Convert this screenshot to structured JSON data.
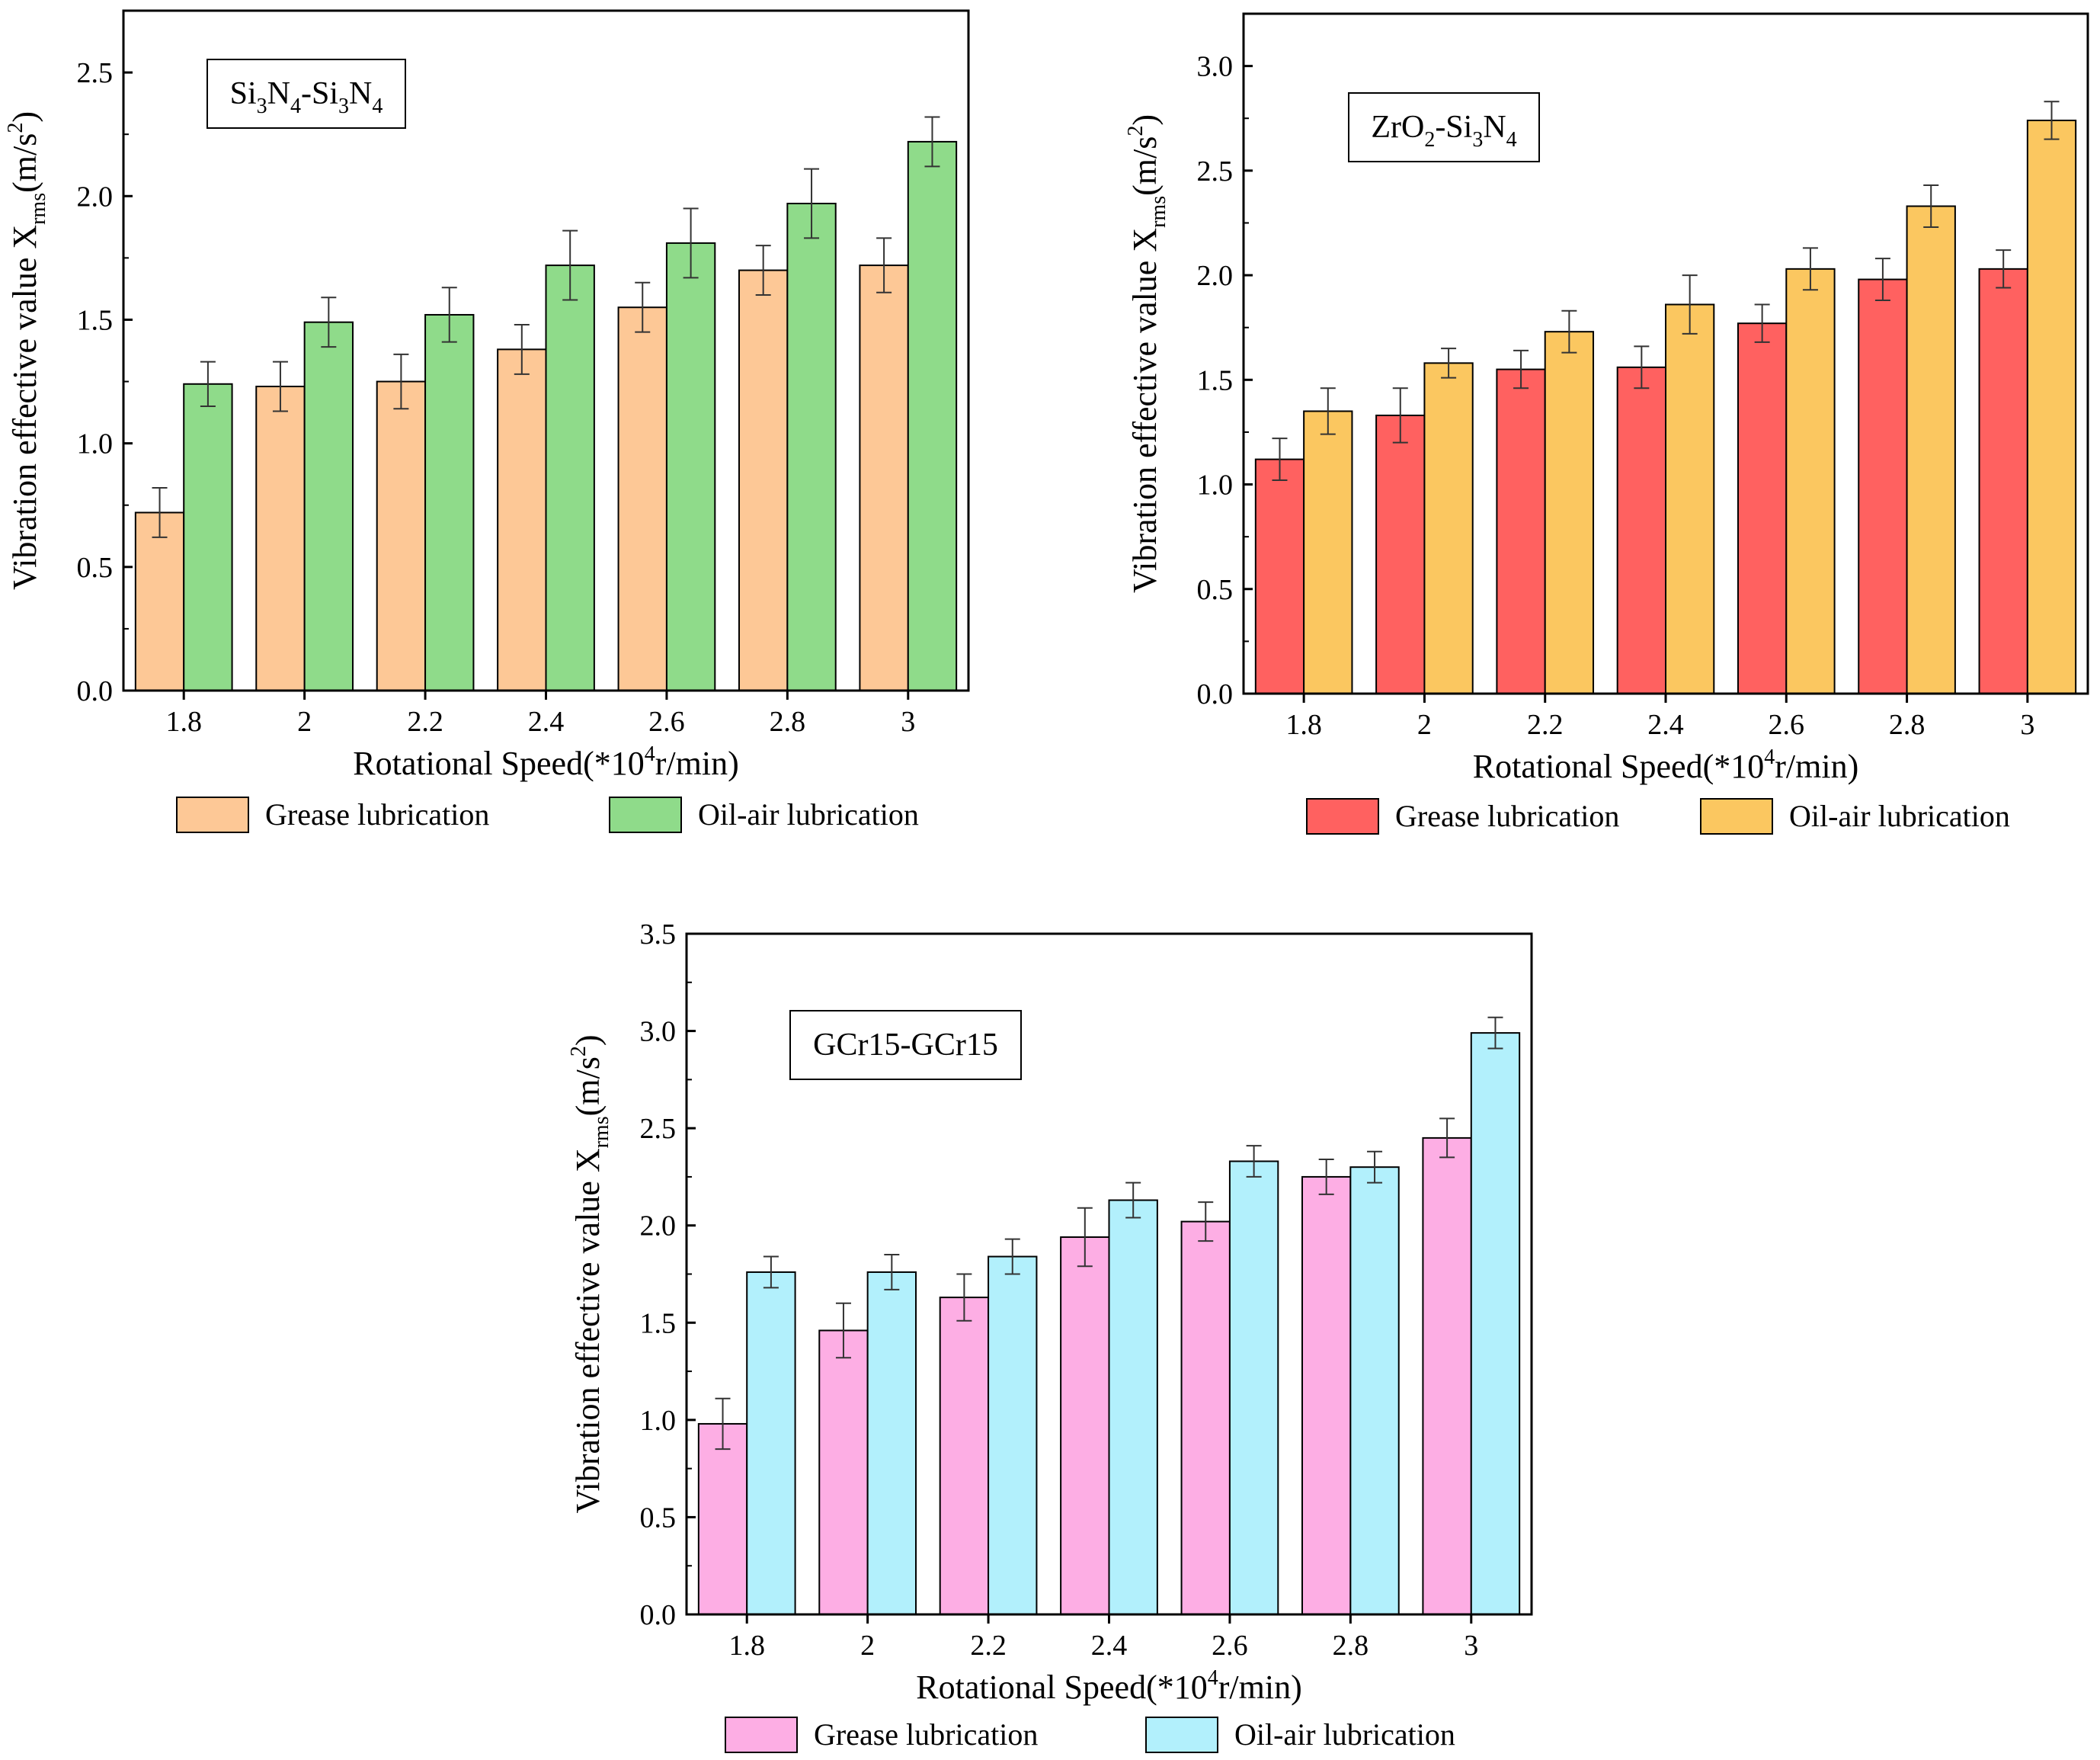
{
  "chart_data": [
    {
      "type": "bar",
      "annotation": {
        "base": [
          "Si",
          "N",
          "-Si",
          "N"
        ],
        "subs": [
          "3",
          "4",
          "3",
          "4"
        ]
      },
      "categories": [
        "1.8",
        "2",
        "2.2",
        "2.4",
        "2.6",
        "2.8",
        "3"
      ],
      "series": [
        {
          "name": "Grease lubrication",
          "color": "#FDC896",
          "values": [
            0.72,
            1.23,
            1.25,
            1.38,
            1.55,
            1.7,
            1.72
          ],
          "errors": [
            0.1,
            0.1,
            0.11,
            0.1,
            0.1,
            0.1,
            0.11
          ]
        },
        {
          "name": "Oil-air lubrication",
          "color": "#8FDB8A",
          "values": [
            1.24,
            1.49,
            1.52,
            1.72,
            1.81,
            1.97,
            2.22
          ],
          "errors": [
            0.09,
            0.1,
            0.11,
            0.14,
            0.14,
            0.14,
            0.1
          ]
        }
      ],
      "ylim": [
        0,
        2.75
      ],
      "yticks": [
        "0.0",
        "0.5",
        "1.0",
        "1.5",
        "2.0",
        "2.5"
      ],
      "xlabel": "Rotational Speed(*10",
      "xlabel_sup": "4",
      "xlabel_tail": "r/min)",
      "ylabel": "Vibration effective value X",
      "ylabel_sub": "rms",
      "ylabel_unit": "(m/s",
      "ylabel_sup": "2",
      "ylabel_tail": ")",
      "legend_position": "bottom"
    },
    {
      "type": "bar",
      "annotation": {
        "base": [
          "ZrO",
          "-Si",
          "N"
        ],
        "subs": [
          "2",
          "3",
          "4"
        ]
      },
      "categories": [
        "1.8",
        "2",
        "2.2",
        "2.4",
        "2.6",
        "2.8",
        "3"
      ],
      "series": [
        {
          "name": "Grease lubrication",
          "color": "#FF6160",
          "values": [
            1.12,
            1.33,
            1.55,
            1.56,
            1.77,
            1.98,
            2.03
          ],
          "errors": [
            0.1,
            0.13,
            0.09,
            0.1,
            0.09,
            0.1,
            0.09
          ]
        },
        {
          "name": "Oil-air lubrication",
          "color": "#FBC760",
          "values": [
            1.35,
            1.58,
            1.73,
            1.86,
            2.03,
            2.33,
            2.74
          ],
          "errors": [
            0.11,
            0.07,
            0.1,
            0.14,
            0.1,
            0.1,
            0.09
          ]
        }
      ],
      "ylim": [
        0,
        3.25
      ],
      "yticks": [
        "0.0",
        "0.5",
        "1.0",
        "1.5",
        "2.0",
        "2.5",
        "3.0"
      ],
      "xlabel": "Rotational Speed(*10",
      "xlabel_sup": "4",
      "xlabel_tail": "r/min)",
      "ylabel": "Vibration effective value X",
      "ylabel_sub": "rms",
      "ylabel_unit": "(m/s",
      "ylabel_sup": "2",
      "ylabel_tail": ")",
      "legend_position": "bottom"
    },
    {
      "type": "bar",
      "annotation": {
        "base": [
          "GCr15-GCr15"
        ],
        "subs": [
          ""
        ]
      },
      "categories": [
        "1.8",
        "2",
        "2.2",
        "2.4",
        "2.6",
        "2.8",
        "3"
      ],
      "series": [
        {
          "name": "Grease lubrication",
          "color": "#FDAEE4",
          "values": [
            0.98,
            1.46,
            1.63,
            1.94,
            2.02,
            2.25,
            2.45
          ],
          "errors": [
            0.13,
            0.14,
            0.12,
            0.15,
            0.1,
            0.09,
            0.1
          ]
        },
        {
          "name": "Oil-air lubrication",
          "color": "#B2F0FC",
          "values": [
            1.76,
            1.76,
            1.84,
            2.13,
            2.33,
            2.3,
            2.99
          ],
          "errors": [
            0.08,
            0.09,
            0.09,
            0.09,
            0.08,
            0.08,
            0.08
          ]
        }
      ],
      "ylim": [
        0,
        3.5
      ],
      "yticks": [
        "0.0",
        "0.5",
        "1.0",
        "1.5",
        "2.0",
        "2.5",
        "3.0",
        "3.5"
      ],
      "xlabel": "Rotational Speed(*10",
      "xlabel_sup": "4",
      "xlabel_tail": "r/min)",
      "ylabel": "Vibration effective value X",
      "ylabel_sub": "rms",
      "ylabel_unit": "(m/s",
      "ylabel_sup": "2",
      "ylabel_tail": ")",
      "legend_position": "bottom"
    }
  ]
}
